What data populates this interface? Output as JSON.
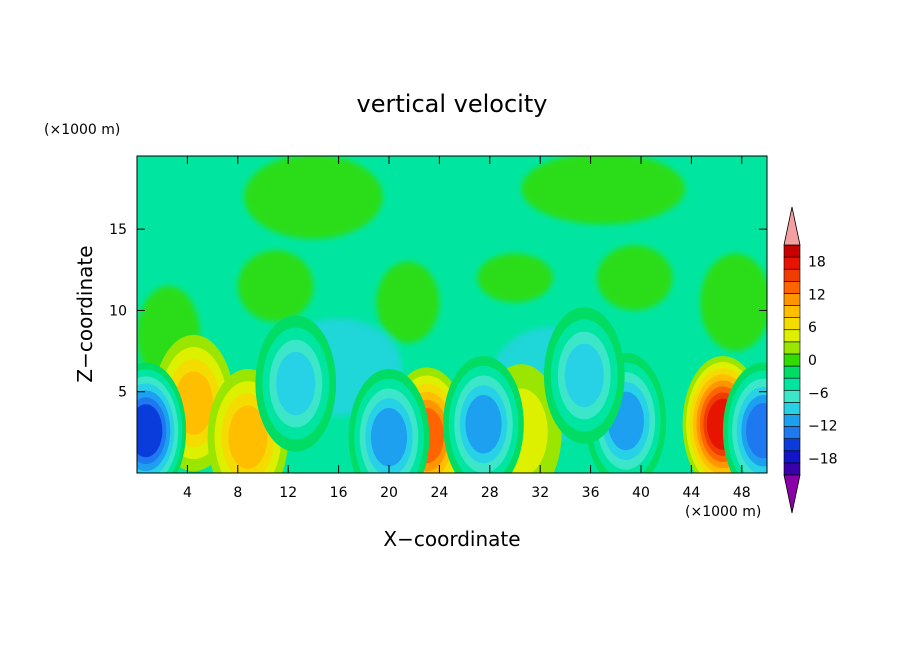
{
  "chart_data": {
    "type": "heatmap",
    "title": "vertical velocity",
    "xlabel": "X−coordinate",
    "ylabel": "Z−coordinate",
    "x_unit": "(×1000 m)",
    "y_unit": "(×1000 m)",
    "xlim": [
      0,
      50
    ],
    "ylim": [
      0,
      19.5
    ],
    "x_ticks": [
      4,
      8,
      12,
      16,
      20,
      24,
      28,
      32,
      36,
      40,
      44,
      48
    ],
    "y_ticks": [
      5,
      10,
      15
    ],
    "colorbar": {
      "range": [
        -21,
        21
      ],
      "tick_values": [
        18,
        12,
        6,
        0,
        -6,
        -12,
        -18
      ],
      "tick_labels": [
        "18",
        "12",
        "6",
        "0",
        "−6",
        "−12",
        "−18"
      ],
      "colors": [
        "#8a00a8",
        "#3a00aa",
        "#1414c8",
        "#0a3cdc",
        "#1e78f0",
        "#1ea0f0",
        "#28d2e6",
        "#3ce6c8",
        "#00e6a0",
        "#00dc64",
        "#32dc00",
        "#9ae600",
        "#dcf000",
        "#f5dc00",
        "#ffbe00",
        "#ff9600",
        "#ff6400",
        "#f03c00",
        "#e61400",
        "#c80000",
        "#f5a0a0"
      ]
    },
    "features": [
      {
        "name": "updraft",
        "x": 46.5,
        "z": 3.0,
        "value": 15
      },
      {
        "name": "updraft",
        "x": 23.0,
        "z": 2.3,
        "value": 12
      },
      {
        "name": "updraft",
        "x": 4.5,
        "z": 4.3,
        "value": 8
      },
      {
        "name": "updraft",
        "x": 8.8,
        "z": 2.2,
        "value": 7
      },
      {
        "name": "updraft",
        "x": 30.5,
        "z": 2.5,
        "value": 4
      },
      {
        "name": "downdraft",
        "x": 0.7,
        "z": 2.6,
        "value": -13
      },
      {
        "name": "downdraft",
        "x": 49.7,
        "z": 2.6,
        "value": -12
      },
      {
        "name": "downdraft",
        "x": 20.0,
        "z": 2.2,
        "value": -10
      },
      {
        "name": "downdraft",
        "x": 27.5,
        "z": 3.0,
        "value": -9
      },
      {
        "name": "downdraft",
        "x": 38.8,
        "z": 3.2,
        "value": -9
      },
      {
        "name": "downdraft",
        "x": 35.5,
        "z": 6.0,
        "value": -8
      },
      {
        "name": "downdraft",
        "x": 12.6,
        "z": 5.5,
        "value": -7
      }
    ]
  }
}
